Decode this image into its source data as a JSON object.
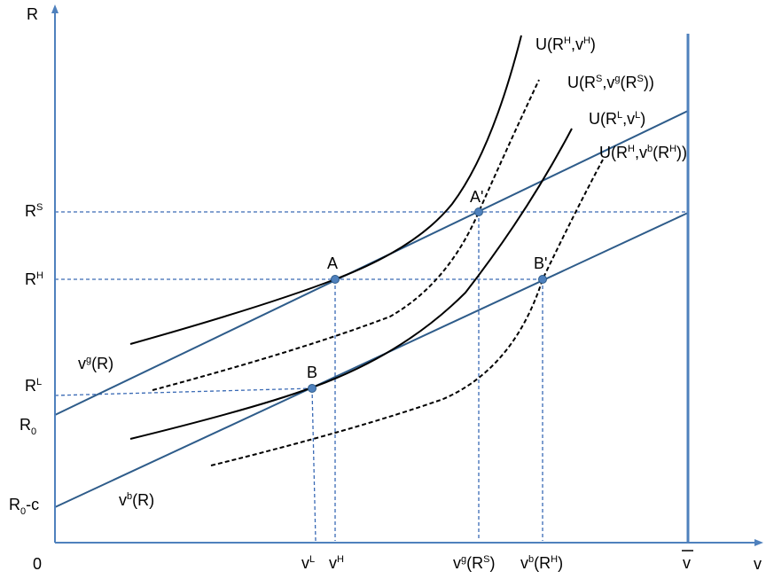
{
  "colors": {
    "axis": "#4f81bd",
    "budget_line": "#2e5c8a",
    "guide": "#3a6ab5",
    "curve": "#000000",
    "point": "#4f81bd",
    "text": "#000000"
  },
  "axes": {
    "y_label": "R",
    "x_label": "v",
    "origin": "0"
  },
  "x_ticks": {
    "vL": {
      "base": "v",
      "sup": "L"
    },
    "vH": {
      "base": "v",
      "sup": "H"
    },
    "vgRS": {
      "base": "v",
      "sup": "g",
      "tail": "(R",
      "sup2": "S",
      "tail2": ")"
    },
    "vbRH": {
      "base": "v",
      "sup": "b",
      "tail": "(R",
      "sup2": "H",
      "tail2": ")"
    },
    "vbar": {
      "base": "v"
    }
  },
  "y_ticks": {
    "RS": {
      "base": "R",
      "sup": "S"
    },
    "RH": {
      "base": "R",
      "sup": "H"
    },
    "RL": {
      "base": "R",
      "sup": "L"
    },
    "R0": {
      "base": "R",
      "sub": "0"
    },
    "R0c": {
      "base": "R",
      "sub": "0",
      "tail": "-c"
    }
  },
  "line_labels": {
    "vg": {
      "base": "v",
      "sup": "g",
      "tail": "(R)"
    },
    "vb": {
      "base": "v",
      "sup": "b",
      "tail": "(R)"
    }
  },
  "points": {
    "A": "A",
    "Aprime": "A'",
    "B": "B",
    "Bprime": "B'"
  },
  "curve_labels": {
    "UH": {
      "p1": "U(R",
      "s1": "H",
      "p2": ",v",
      "s2": "H",
      "p3": ")"
    },
    "US": {
      "p1": "U(R",
      "s1": "S",
      "p2": ",v",
      "s2": "g",
      "p3": "(R",
      "s3": "S",
      "p4": "))"
    },
    "UL": {
      "p1": "U(R",
      "s1": "L",
      "p2": ",v",
      "s2": "L",
      "p3": ")"
    },
    "UHb": {
      "p1": "U(R",
      "s1": "H",
      "p2": ",v",
      "s2": "b",
      "p3": "(R",
      "s3": "H",
      "p4": "))"
    }
  }
}
